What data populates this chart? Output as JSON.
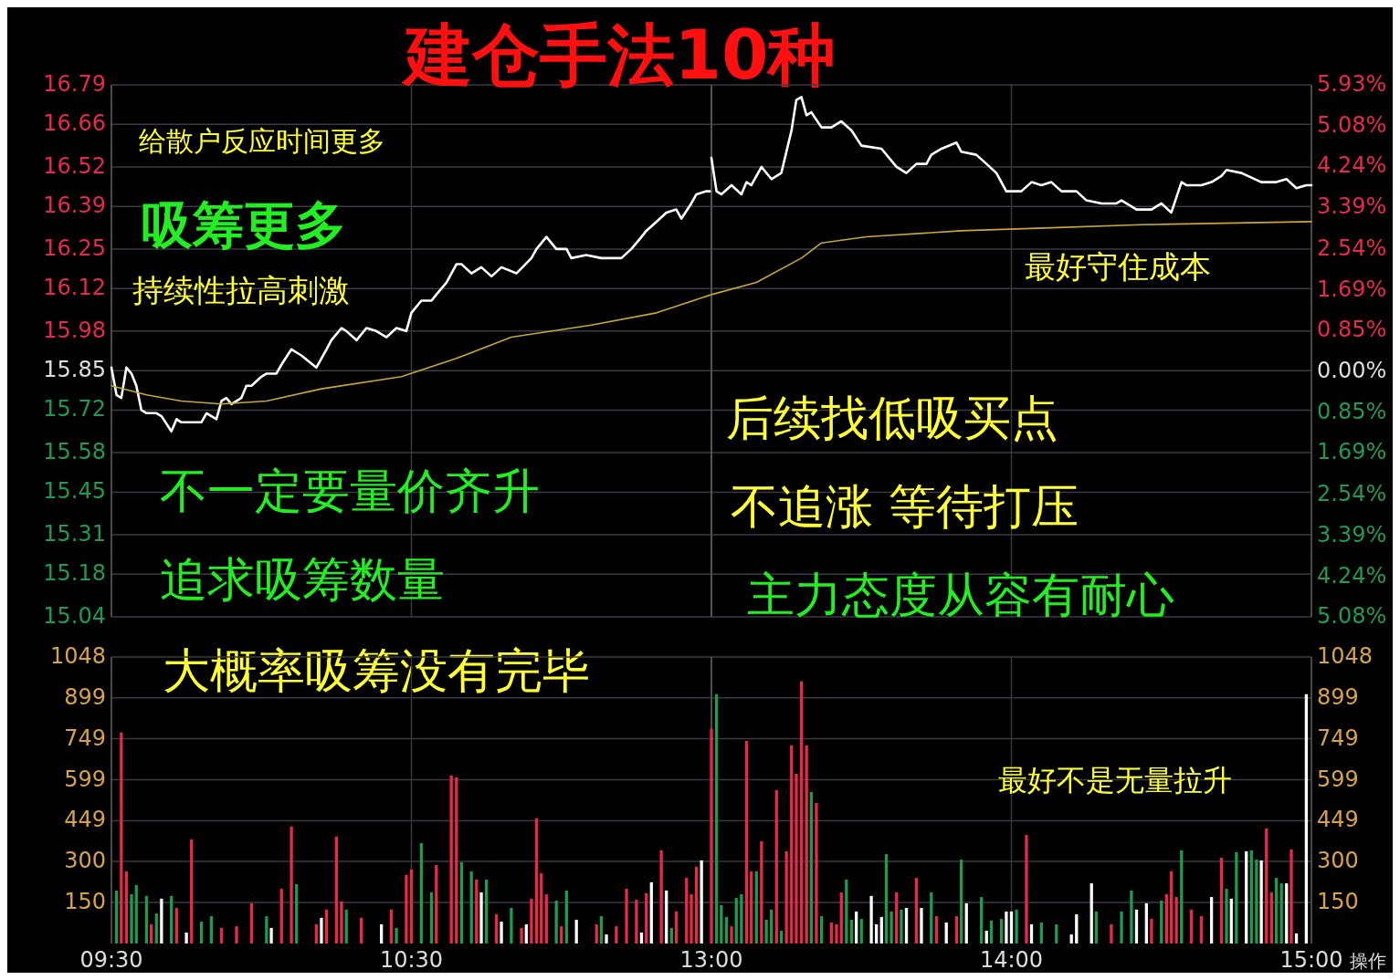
{
  "chart_data": [
    {
      "type": "line",
      "title": "建仓手法10种",
      "annotations": [
        "给散户反应时间更多",
        "吸筹更多",
        "持续性拉高刺激",
        "不一定要量价齐升",
        "追求吸筹数量",
        "大概率吸筹没有完毕"
      ],
      "series": [
        {
          "color": "#ffffff",
          "x": [
            9.5,
            9.517,
            9.533,
            9.55,
            9.567,
            9.583,
            9.6,
            9.617,
            9.65,
            9.667,
            9.7,
            9.717,
            9.733,
            9.767,
            9.8,
            9.817,
            9.85,
            9.867,
            9.883,
            9.9,
            9.933,
            9.95,
            9.967,
            10,
            10.017,
            10.05,
            10.067,
            10.1,
            10.133,
            10.183,
            10.217,
            10.233,
            10.267,
            10.283,
            10.317,
            10.35,
            10.383,
            10.417,
            10.45,
            10.483,
            10.5,
            10.533,
            10.567,
            10.583,
            10.617,
            10.65,
            10.667,
            10.7,
            10.733,
            10.767,
            10.8,
            10.85,
            10.9,
            10.917,
            10.95,
            10.983,
            11.017,
            11.033,
            11.083,
            11.133,
            11.2,
            11.233,
            11.267,
            11.283,
            11.317,
            11.35,
            11.383,
            11.4,
            11.433,
            11.45,
            11.483,
            11.5
          ],
          "values": [
            15.86,
            15.77,
            15.76,
            15.86,
            15.84,
            15.8,
            15.72,
            15.71,
            15.71,
            15.7,
            15.65,
            15.69,
            15.68,
            15.68,
            15.68,
            15.71,
            15.69,
            15.75,
            15.76,
            15.74,
            15.76,
            15.8,
            15.8,
            15.83,
            15.84,
            15.84,
            15.87,
            15.92,
            15.9,
            15.86,
            15.92,
            15.95,
            15.99,
            15.98,
            15.95,
            15.99,
            15.98,
            15.96,
            15.99,
            15.98,
            16.04,
            16.08,
            16.08,
            16.1,
            16.14,
            16.2,
            16.2,
            16.17,
            16.19,
            16.16,
            16.19,
            16.17,
            16.22,
            16.25,
            16.29,
            16.25,
            16.25,
            16.22,
            16.23,
            16.22,
            16.22,
            16.25,
            16.29,
            16.31,
            16.34,
            16.37,
            16.38,
            16.35,
            16.4,
            16.43,
            16.44,
            16.44
          ]
        },
        {
          "color": "#c8a832",
          "x": [
            9.5,
            9.617,
            9.733,
            9.867,
            10.017,
            10.2,
            10.467,
            10.65,
            10.833,
            11.1,
            11.317,
            11.5
          ],
          "values": [
            15.8,
            15.77,
            15.75,
            15.74,
            15.75,
            15.79,
            15.83,
            15.89,
            15.96,
            16.0,
            16.04,
            16.1
          ]
        }
      ],
      "xlim": [
        9.5,
        11.5
      ],
      "xticks": [
        {
          "value": 9.5,
          "label": null
        },
        {
          "value": 10.5,
          "label": null
        },
        {
          "value": 11.5,
          "label": null
        }
      ],
      "ylim": [
        15.04,
        16.79
      ],
      "yticks": [
        16.79,
        16.66,
        16.52,
        16.39,
        16.25,
        16.12,
        15.98,
        15.85,
        15.72,
        15.58,
        15.45,
        15.31,
        15.18,
        15.04
      ],
      "grid": true,
      "tick_labels": "y"
    },
    {
      "type": "line",
      "annotations": [
        "后续找低吸买点",
        "不追涨 等待打压",
        "主力态度从容有耐心",
        "最好守住成本"
      ],
      "series": [
        {
          "color": "#ffffff",
          "x": [
            13,
            13.017,
            13.033,
            13.067,
            13.1,
            13.117,
            13.133,
            13.167,
            13.2,
            13.233,
            13.267,
            13.283,
            13.3,
            13.317,
            13.333,
            13.367,
            13.4,
            13.433,
            13.467,
            13.5,
            13.567,
            13.617,
            13.65,
            13.683,
            13.717,
            13.733,
            13.767,
            13.817,
            13.833,
            13.883,
            13.917,
            13.95,
            13.983,
            14.033,
            14.067,
            14.1,
            14.133,
            14.167,
            14.217,
            14.25,
            14.3,
            14.35,
            14.367,
            14.417,
            14.467,
            14.5,
            14.533,
            14.567,
            14.583,
            14.633,
            14.667,
            14.7,
            14.717,
            14.767,
            14.833,
            14.883,
            14.917,
            14.95,
            14.983,
            15
          ],
          "values": [
            16.55,
            16.44,
            16.43,
            16.46,
            16.43,
            16.47,
            16.46,
            16.52,
            16.48,
            16.5,
            16.64,
            16.74,
            16.75,
            16.69,
            16.7,
            16.65,
            16.65,
            16.67,
            16.64,
            16.59,
            16.58,
            16.52,
            16.5,
            16.53,
            16.53,
            16.56,
            16.58,
            16.6,
            16.57,
            16.56,
            16.53,
            16.5,
            16.44,
            16.44,
            16.47,
            16.46,
            16.47,
            16.44,
            16.44,
            16.41,
            16.4,
            16.4,
            16.41,
            16.38,
            16.38,
            16.4,
            16.37,
            16.47,
            16.46,
            16.46,
            16.47,
            16.49,
            16.51,
            16.5,
            16.47,
            16.47,
            16.48,
            16.45,
            16.46,
            16.46
          ]
        },
        {
          "color": "#c8a832",
          "x": [
            13,
            13.15,
            13.3,
            13.367,
            13.517,
            13.833,
            14.133,
            14.433,
            15
          ],
          "values": [
            16.1,
            16.14,
            16.22,
            16.27,
            16.29,
            16.31,
            16.32,
            16.33,
            16.34
          ]
        }
      ],
      "xlim": [
        13,
        15
      ],
      "xticks": [
        {
          "value": 13,
          "label": null
        },
        {
          "value": 14,
          "label": null
        },
        {
          "value": 15,
          "label": null
        }
      ],
      "ylim": [
        15.04,
        16.79
      ],
      "yticks": [
        16.79,
        16.66,
        16.52,
        16.39,
        16.25,
        16.12,
        15.98,
        15.85,
        15.72,
        15.58,
        15.45,
        15.31,
        15.18,
        15.04
      ],
      "y2lim": [
        -5.08,
        5.93
      ],
      "y2ticks": [
        {
          "value": 5.93,
          "label": "5.93%"
        },
        {
          "value": 5.08,
          "label": "5.08%"
        },
        {
          "value": 4.24,
          "label": "4.24%"
        },
        {
          "value": 3.39,
          "label": "3.39%"
        },
        {
          "value": 2.54,
          "label": "2.54%"
        },
        {
          "value": 1.69,
          "label": "1.69%"
        },
        {
          "value": 0.85,
          "label": "0.85%"
        },
        {
          "value": 0,
          "label": "0.00%"
        },
        {
          "value": -0.85,
          "label": "0.85%"
        },
        {
          "value": -1.69,
          "label": "1.69%"
        },
        {
          "value": -2.54,
          "label": "2.54%"
        },
        {
          "value": -3.39,
          "label": "3.39%"
        },
        {
          "value": -4.24,
          "label": "4.24%"
        },
        {
          "value": -5.08,
          "label": "5.08%"
        }
      ],
      "grid": true,
      "tick_labels": false
    },
    {
      "type": "bar",
      "x": [
        9.517,
        9.533,
        9.55,
        9.567,
        9.583,
        9.617,
        9.633,
        9.65,
        9.667,
        9.7,
        9.717,
        9.75,
        9.767,
        9.8,
        9.833,
        9.867,
        9.917,
        9.967,
        10.017,
        10.033,
        10.067,
        10.1,
        10.117,
        10.183,
        10.2,
        10.217,
        10.25,
        10.267,
        10.283,
        10.333,
        10.4,
        10.433,
        10.45,
        10.483,
        10.5,
        10.533,
        10.567,
        10.583,
        10.633,
        10.65,
        10.667,
        10.7,
        10.717,
        10.733,
        10.75,
        10.783,
        10.8,
        10.833,
        10.867,
        10.883,
        10.9,
        10.917,
        10.933,
        10.95,
        10.983,
        11,
        11.017,
        11.05,
        11.117,
        11.133,
        11.15,
        11.183,
        11.217,
        11.25,
        11.267,
        11.283,
        11.3,
        11.333,
        11.35,
        11.367,
        11.383,
        11.417,
        11.433,
        11.45,
        11.467
      ],
      "values": [
        194,
        772,
        264,
        180,
        214,
        174,
        70,
        110,
        164,
        174,
        130,
        40,
        381,
        80,
        100,
        57,
        63,
        147,
        100,
        57,
        200,
        428,
        217,
        70,
        94,
        124,
        391,
        154,
        124,
        94,
        70,
        124,
        57,
        251,
        271,
        367,
        187,
        287,
        615,
        608,
        297,
        264,
        234,
        187,
        234,
        107,
        80,
        130,
        57,
        70,
        164,
        458,
        257,
        180,
        157,
        63,
        194,
        87,
        70,
        100,
        33,
        63,
        200,
        160,
        40,
        184,
        224,
        341,
        194,
        57,
        117,
        240,
        180,
        281,
        304
      ],
      "colors": [
        "#1f9b4f",
        "#e8294a",
        "#e8294a",
        "#1f9b4f",
        "#1f9b4f",
        "#1f9b4f",
        "#e8294a",
        "#1f9b4f",
        "#ffffff",
        "#1f9b4f",
        "#e8294a",
        "#ffffff",
        "#e8294a",
        "#1f9b4f",
        "#1f9b4f",
        "#e8294a",
        "#e8294a",
        "#e8294a",
        "#1f9b4f",
        "#ffffff",
        "#e8294a",
        "#e8294a",
        "#1f9b4f",
        "#e8294a",
        "#ffffff",
        "#e8294a",
        "#e8294a",
        "#e8294a",
        "#1f9b4f",
        "#e8294a",
        "#ffffff",
        "#e8294a",
        "#1f9b4f",
        "#e8294a",
        "#e8294a",
        "#1f9b4f",
        "#1f9b4f",
        "#e8294a",
        "#e8294a",
        "#e8294a",
        "#1f9b4f",
        "#1f9b4f",
        "#e8294a",
        "#ffffff",
        "#1f9b4f",
        "#e8294a",
        "#ffffff",
        "#1f9b4f",
        "#e8294a",
        "#ffffff",
        "#e8294a",
        "#e8294a",
        "#e8294a",
        "#e8294a",
        "#1f9b4f",
        "#e8294a",
        "#1f9b4f",
        "#ffffff",
        "#e8294a",
        "#1f9b4f",
        "#ffffff",
        "#e8294a",
        "#e8294a",
        "#e8294a",
        "#ffffff",
        "#e8294a",
        "#ffffff",
        "#e8294a",
        "#ffffff",
        "#1f9b4f",
        "#e8294a",
        "#e8294a",
        "#e8294a",
        "#e8294a",
        "#ffffff"
      ],
      "xlim": [
        9.5,
        11.5
      ],
      "xticks": [
        {
          "value": 9.5,
          "label": "09:30"
        },
        {
          "value": 10.5,
          "label": "10:30"
        }
      ],
      "ylim": [
        0,
        1048
      ],
      "yticks": [
        1048,
        899,
        749,
        599,
        449,
        300,
        150
      ],
      "grid": true
    },
    {
      "type": "bar",
      "annotations": [
        "最好不是无量拉升",
        "操作"
      ],
      "x": [
        13,
        13.017,
        13.033,
        13.05,
        13.067,
        13.083,
        13.1,
        13.117,
        13.133,
        13.15,
        13.167,
        13.183,
        13.2,
        13.217,
        13.233,
        13.25,
        13.267,
        13.283,
        13.3,
        13.317,
        13.333,
        13.35,
        13.367,
        13.4,
        13.417,
        13.433,
        13.45,
        13.467,
        13.483,
        13.5,
        13.533,
        13.55,
        13.567,
        13.583,
        13.6,
        13.617,
        13.633,
        13.65,
        13.683,
        13.7,
        13.733,
        13.75,
        13.783,
        13.817,
        13.833,
        13.85,
        13.9,
        13.917,
        13.933,
        13.967,
        13.983,
        14,
        14.017,
        14.05,
        14.067,
        14.1,
        14.15,
        14.2,
        14.217,
        14.267,
        14.283,
        14.333,
        14.367,
        14.4,
        14.417,
        14.45,
        14.467,
        14.5,
        14.517,
        14.533,
        14.55,
        14.567,
        14.6,
        14.633,
        14.667,
        14.7,
        14.717,
        14.733,
        14.75,
        14.783,
        14.8,
        14.817,
        14.833,
        14.85,
        14.867,
        14.883,
        14.9,
        14.917,
        14.933,
        14.95,
        14.983
      ],
      "values": [
        785,
        912,
        140,
        97,
        63,
        167,
        180,
        741,
        264,
        264,
        374,
        87,
        124,
        561,
        47,
        337,
        725,
        621,
        959,
        725,
        554,
        514,
        100,
        77,
        70,
        187,
        234,
        87,
        117,
        90,
        174,
        70,
        97,
        327,
        117,
        187,
        124,
        130,
        240,
        130,
        187,
        100,
        77,
        100,
        307,
        147,
        170,
        47,
        84,
        90,
        117,
        117,
        124,
        397,
        70,
        77,
        70,
        33,
        107,
        220,
        117,
        70,
        117,
        194,
        124,
        147,
        90,
        157,
        180,
        264,
        170,
        341,
        124,
        100,
        170,
        314,
        200,
        164,
        334,
        337,
        341,
        307,
        304,
        421,
        187,
        240,
        220,
        220,
        344,
        37,
        912
      ],
      "colors": [
        "#e8294a",
        "#1f9b4f",
        "#1f9b4f",
        "#1f9b4f",
        "#e8294a",
        "#1f9b4f",
        "#1f9b4f",
        "#e8294a",
        "#e8294a",
        "#1f9b4f",
        "#e8294a",
        "#1f9b4f",
        "#1f9b4f",
        "#e8294a",
        "#1f9b4f",
        "#e8294a",
        "#e8294a",
        "#e8294a",
        "#e8294a",
        "#e8294a",
        "#1f9b4f",
        "#e8294a",
        "#1f9b4f",
        "#e8294a",
        "#e8294a",
        "#e8294a",
        "#1f9b4f",
        "#1f9b4f",
        "#ffffff",
        "#1f9b4f",
        "#ffffff",
        "#ffffff",
        "#ffffff",
        "#1f9b4f",
        "#1f9b4f",
        "#e8294a",
        "#1f9b4f",
        "#ffffff",
        "#e8294a",
        "#ffffff",
        "#1f9b4f",
        "#e8294a",
        "#ffffff",
        "#e8294a",
        "#1f9b4f",
        "#ffffff",
        "#1f9b4f",
        "#ffffff",
        "#1f9b4f",
        "#1f9b4f",
        "#ffffff",
        "#ffffff",
        "#1f9b4f",
        "#e8294a",
        "#ffffff",
        "#1f9b4f",
        "#1f9b4f",
        "#ffffff",
        "#ffffff",
        "#ffffff",
        "#1f9b4f",
        "#e8294a",
        "#1f9b4f",
        "#1f9b4f",
        "#ffffff",
        "#ffffff",
        "#e8294a",
        "#1f9b4f",
        "#e8294a",
        "#e8294a",
        "#e8294a",
        "#1f9b4f",
        "#e8294a",
        "#e8294a",
        "#ffffff",
        "#e8294a",
        "#1f9b4f",
        "#ffffff",
        "#1f9b4f",
        "#ffffff",
        "#1f9b4f",
        "#1f9b4f",
        "#ffffff",
        "#e8294a",
        "#e8294a",
        "#1f9b4f",
        "#1f9b4f",
        "#ffffff",
        "#e8294a",
        "#ffffff",
        "#ffffff"
      ],
      "xlim": [
        13,
        15
      ],
      "xticks": [
        {
          "value": 13,
          "label": "13:00"
        },
        {
          "value": 14,
          "label": "14:00"
        },
        {
          "value": 15,
          "label": "15:00"
        }
      ],
      "ylim": [
        0,
        1048
      ],
      "yticks": [
        1048,
        899,
        749,
        599,
        449,
        300,
        150
      ],
      "grid": true
    }
  ]
}
